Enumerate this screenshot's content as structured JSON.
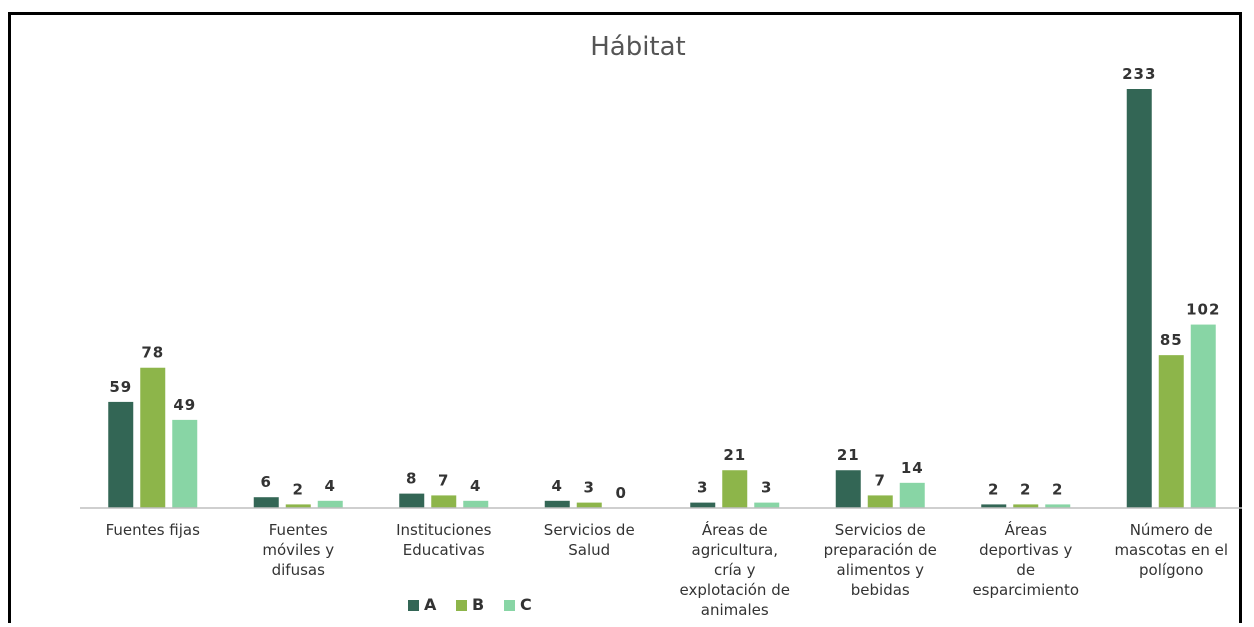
{
  "chart_data": {
    "type": "bar",
    "title": "Hábitat",
    "categories": [
      [
        "Fuentes fijas"
      ],
      [
        "Fuentes",
        "móviles y",
        "difusas"
      ],
      [
        "Instituciones",
        "Educativas"
      ],
      [
        "Servicios de",
        "Salud"
      ],
      [
        "Áreas de",
        "agricultura,",
        "cría y",
        "explotación de",
        "animales"
      ],
      [
        "Servicios de",
        "preparación de",
        "alimentos y",
        "bebidas"
      ],
      [
        "Áreas",
        "deportivas y",
        "de",
        "esparcimiento"
      ],
      [
        "Número de",
        "mascotas en el",
        "polígono"
      ]
    ],
    "series": [
      {
        "name": "A",
        "color": "#336655",
        "values": [
          59,
          6,
          8,
          4,
          3,
          21,
          2,
          233
        ]
      },
      {
        "name": "B",
        "color": "#8db54a",
        "values": [
          78,
          2,
          7,
          3,
          21,
          7,
          2,
          85
        ]
      },
      {
        "name": "C",
        "color": "#88d5a5",
        "values": [
          49,
          4,
          4,
          0,
          3,
          14,
          2,
          102
        ]
      }
    ],
    "ylim": [
      0,
      233
    ],
    "grid": false,
    "legend": "bottom"
  }
}
